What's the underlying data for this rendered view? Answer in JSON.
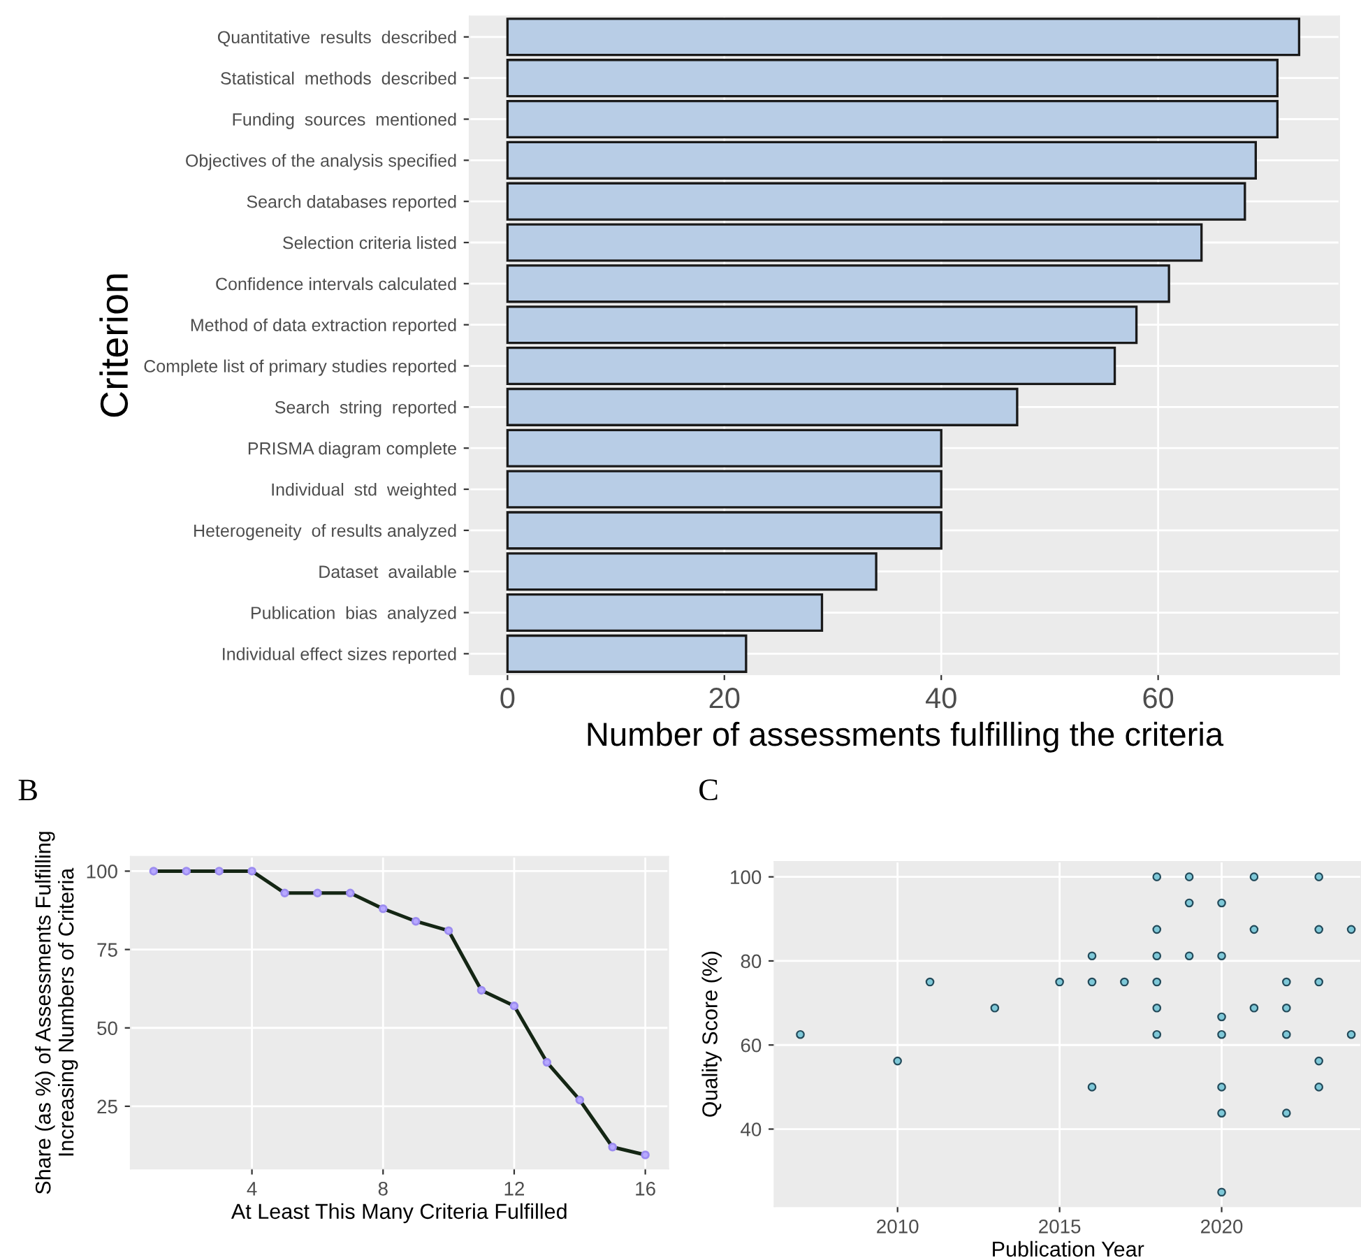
{
  "chart_data": [
    {
      "type": "bar",
      "orientation": "horizontal",
      "ylabel": "Criterion",
      "xlabel": "Number of assessments fulfilling the criteria",
      "categories": [
        "Quantitative  results  described",
        "Statistical  methods  described",
        "Funding  sources  mentioned",
        "Objectives of the analysis specified",
        "Search databases reported",
        "Selection criteria listed",
        "Confidence intervals calculated",
        "Method of data extraction reported",
        "Complete list of primary studies reported",
        "Search  string  reported",
        "PRISMA diagram complete",
        "Individual  std  weighted",
        "Heterogeneity  of results analyzed",
        "Dataset  available",
        "Publication  bias  analyzed",
        "Individual effect sizes reported"
      ],
      "values": [
        73,
        71,
        71,
        69,
        68,
        64,
        61,
        58,
        56,
        47,
        40,
        40,
        40,
        34,
        29,
        22
      ],
      "color": "#b8cde6",
      "xlim": [
        -3.5,
        76.7
      ],
      "xticks": [
        0,
        20,
        40,
        60
      ],
      "grid": true
    },
    {
      "type": "line",
      "title": "B",
      "xlabel": "At Least This Many Criteria Fulfilled",
      "ylabel": "Share (as %) of Assessments Fulfilling\nIncreasing Numbers of Criteria",
      "x": [
        1,
        2,
        3,
        4,
        5,
        6,
        7,
        8,
        9,
        10,
        11,
        12,
        13,
        14,
        15,
        16
      ],
      "series": [
        {
          "color": "#142614",
          "values": [
            100,
            100,
            100,
            100,
            93,
            93,
            93,
            88,
            84,
            81,
            62,
            57,
            39,
            27,
            12,
            9.5
          ]
        }
      ],
      "marker": "circle",
      "line_style": "solid",
      "xlim": [
        0.3,
        16.7
      ],
      "ylim": [
        5.1,
        104.6
      ],
      "xticks": [
        4,
        8,
        12,
        16
      ],
      "yticks": [
        25,
        50,
        75,
        100
      ],
      "grid": true
    },
    {
      "type": "scatter",
      "title": "C",
      "xlabel": "Publication Year",
      "ylabel": "Quality Score (%)",
      "x": [
        2007,
        2010,
        2011,
        2013,
        2015,
        2016,
        2016,
        2016,
        2017,
        2018,
        2018,
        2018,
        2018,
        2018,
        2018,
        2019,
        2019,
        2019,
        2020,
        2020,
        2020,
        2020,
        2020,
        2020,
        2020,
        2021,
        2021,
        2021,
        2022,
        2022,
        2022,
        2022,
        2023,
        2023,
        2023,
        2023,
        2023,
        2024,
        2024
      ],
      "series": [
        {
          "color": "#7ec8d8",
          "values": [
            62.5,
            56.2,
            75,
            68.8,
            75,
            81.2,
            75,
            50,
            75,
            100,
            87.5,
            81.2,
            75,
            68.8,
            62.5,
            100,
            93.8,
            81.2,
            93.8,
            81.2,
            66.7,
            62.5,
            50,
            43.8,
            25,
            100,
            87.5,
            68.8,
            75,
            68.8,
            62.5,
            43.8,
            100,
            87.5,
            75,
            56.2,
            50,
            87.5,
            62.5
          ]
        }
      ],
      "marker": "circle",
      "xlim": [
        2006.2,
        2024.3
      ],
      "ylim": [
        21.6,
        103.6
      ],
      "xticks": [
        2010,
        2015,
        2020
      ],
      "yticks": [
        40,
        60,
        80,
        100
      ],
      "grid": true
    }
  ]
}
